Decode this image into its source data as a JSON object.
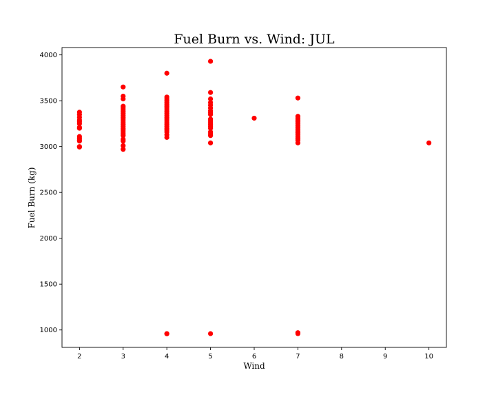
{
  "chart_data": {
    "type": "scatter",
    "title": "Fuel Burn vs. Wind: JUL",
    "xlabel": "Wind",
    "ylabel": "Fuel Burn (kg)",
    "xlim": [
      1.6,
      10.4
    ],
    "ylim": [
      810,
      4080
    ],
    "xticks": [
      "2",
      "3",
      "4",
      "5",
      "6",
      "7",
      "8",
      "9",
      "10"
    ],
    "yticks": [
      "1000",
      "1500",
      "2000",
      "2500",
      "3000",
      "3500",
      "4000"
    ],
    "grid": false,
    "legend": "none",
    "marker_color": "#ff0000",
    "series": [
      {
        "points": [
          [
            2,
            3375
          ],
          [
            2,
            3350
          ],
          [
            2,
            3320
          ],
          [
            2,
            3290
          ],
          [
            2,
            3270
          ],
          [
            2,
            3250
          ],
          [
            2,
            3210
          ],
          [
            2,
            3200
          ],
          [
            2,
            3110
          ],
          [
            2,
            3090
          ],
          [
            2,
            3070
          ],
          [
            2,
            3060
          ],
          [
            2,
            3000
          ],
          [
            2,
            2995
          ],
          [
            3,
            3650
          ],
          [
            3,
            3550
          ],
          [
            3,
            3520
          ],
          [
            3,
            3440
          ],
          [
            3,
            3420
          ],
          [
            3,
            3400
          ],
          [
            3,
            3380
          ],
          [
            3,
            3360
          ],
          [
            3,
            3340
          ],
          [
            3,
            3320
          ],
          [
            3,
            3300
          ],
          [
            3,
            3280
          ],
          [
            3,
            3260
          ],
          [
            3,
            3240
          ],
          [
            3,
            3220
          ],
          [
            3,
            3200
          ],
          [
            3,
            3180
          ],
          [
            3,
            3160
          ],
          [
            3,
            3140
          ],
          [
            3,
            3120
          ],
          [
            3,
            3080
          ],
          [
            3,
            3060
          ],
          [
            3,
            3010
          ],
          [
            3,
            2970
          ],
          [
            4,
            3800
          ],
          [
            4,
            3540
          ],
          [
            4,
            3520
          ],
          [
            4,
            3500
          ],
          [
            4,
            3480
          ],
          [
            4,
            3460
          ],
          [
            4,
            3440
          ],
          [
            4,
            3420
          ],
          [
            4,
            3400
          ],
          [
            4,
            3380
          ],
          [
            4,
            3360
          ],
          [
            4,
            3340
          ],
          [
            4,
            3320
          ],
          [
            4,
            3300
          ],
          [
            4,
            3280
          ],
          [
            4,
            3260
          ],
          [
            4,
            3240
          ],
          [
            4,
            3220
          ],
          [
            4,
            3200
          ],
          [
            4,
            3180
          ],
          [
            4,
            3160
          ],
          [
            4,
            3130
          ],
          [
            4,
            3100
          ],
          [
            4,
            960
          ],
          [
            4,
            958
          ],
          [
            5,
            3930
          ],
          [
            5,
            3590
          ],
          [
            5,
            3520
          ],
          [
            5,
            3480
          ],
          [
            5,
            3450
          ],
          [
            5,
            3420
          ],
          [
            5,
            3390
          ],
          [
            5,
            3370
          ],
          [
            5,
            3350
          ],
          [
            5,
            3300
          ],
          [
            5,
            3280
          ],
          [
            5,
            3260
          ],
          [
            5,
            3240
          ],
          [
            5,
            3220
          ],
          [
            5,
            3200
          ],
          [
            5,
            3160
          ],
          [
            5,
            3140
          ],
          [
            5,
            3120
          ],
          [
            5,
            3040
          ],
          [
            5,
            960
          ],
          [
            6,
            3310
          ],
          [
            7,
            3530
          ],
          [
            7,
            3330
          ],
          [
            7,
            3310
          ],
          [
            7,
            3290
          ],
          [
            7,
            3270
          ],
          [
            7,
            3250
          ],
          [
            7,
            3230
          ],
          [
            7,
            3210
          ],
          [
            7,
            3190
          ],
          [
            7,
            3170
          ],
          [
            7,
            3150
          ],
          [
            7,
            3130
          ],
          [
            7,
            3110
          ],
          [
            7,
            3090
          ],
          [
            7,
            3070
          ],
          [
            7,
            3040
          ],
          [
            7,
            970
          ],
          [
            7,
            960
          ],
          [
            10,
            3040
          ]
        ]
      }
    ]
  }
}
